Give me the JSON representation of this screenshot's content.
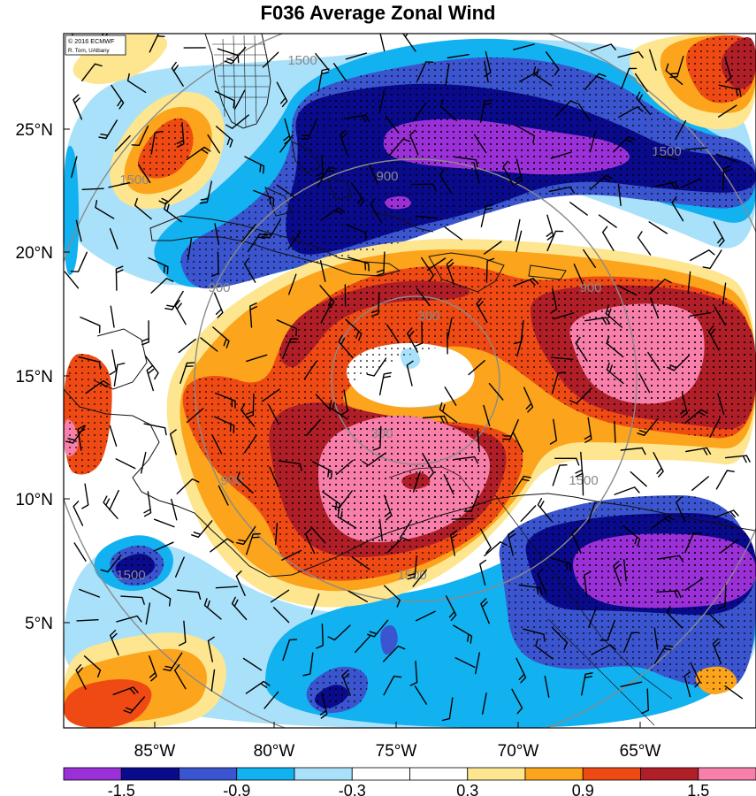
{
  "title": "F036 Average Zonal Wind",
  "credits": [
    "© 2016 ECMWF",
    "R. Torn, UAlbany"
  ],
  "lat_labels": [
    "25°N",
    "20°N",
    "15°N",
    "10°N",
    "5°N"
  ],
  "lon_labels": [
    "85°W",
    "80°W",
    "75°W",
    "70°W",
    "65°W"
  ],
  "ring_labels": [
    "300",
    "300",
    "900",
    "900",
    "900",
    "900",
    "1500",
    "1500",
    "1500",
    "1500",
    "1500",
    "1500"
  ],
  "colorbar": {
    "colors": [
      "#9b30d9",
      "#0a0a8c",
      "#3a55cf",
      "#12b1f0",
      "#a9e1fa",
      "#ffffff",
      "#ffffff",
      "#fde68f",
      "#fba41c",
      "#f04a14",
      "#b01e28",
      "#f77faa"
    ],
    "tick_labels": [
      "-1.5",
      "-0.9",
      "-0.3",
      "0.3",
      "0.9",
      "1.5"
    ]
  },
  "colors": {
    "purple": "#9b30d9",
    "navy": "#0a0a8c",
    "blue": "#3a55cf",
    "cyan": "#12b1f0",
    "lightblue": "#a9e1fa",
    "yellow": "#fde68f",
    "orange": "#fba41c",
    "redorange": "#f04a14",
    "darkred": "#b01e28",
    "pink": "#f77faa"
  }
}
